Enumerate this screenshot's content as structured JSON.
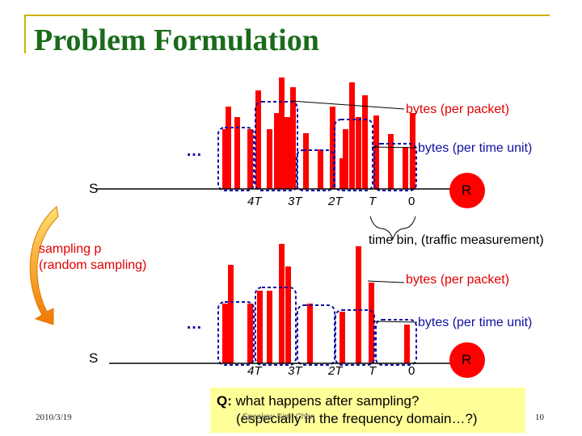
{
  "slide": {
    "title": "Problem Formulation",
    "date": "2010/3/19",
    "page_number": "10",
    "footer_center": "Speaker: Kim, Chen"
  },
  "top_diagram": {
    "label_bytes_per_packet": "bytes (per packet)",
    "label_bytes_per_time_unit": "bytes (per time unit)",
    "ellipsis": "…",
    "sender": "S",
    "receiver": "R",
    "ticks": [
      "4T",
      "3T",
      "2T",
      "T",
      "0"
    ],
    "time_bin_label": "time bin, (traffic measurement)"
  },
  "sampling": {
    "line1": "sampling p",
    "line2": "(random sampling)"
  },
  "bottom_diagram": {
    "label_bytes_per_packet": "bytes (per packet)",
    "label_bytes_per_time_unit": "bytes (per time unit)",
    "ellipsis": "…",
    "sender": "S",
    "receiver": "R",
    "ticks": [
      "4T",
      "3T",
      "2T",
      "T",
      "0"
    ]
  },
  "question": {
    "prefix": "Q:",
    "line1": " what happens after sampling?",
    "line2": "(especially in the frequency domain…?)"
  },
  "colors": {
    "title": "#1a6b1a",
    "packet_bar": "#ff0000",
    "bin_outline": "#1010a0",
    "highlight_box": "#ffff99",
    "frame": "#c8b400"
  }
}
